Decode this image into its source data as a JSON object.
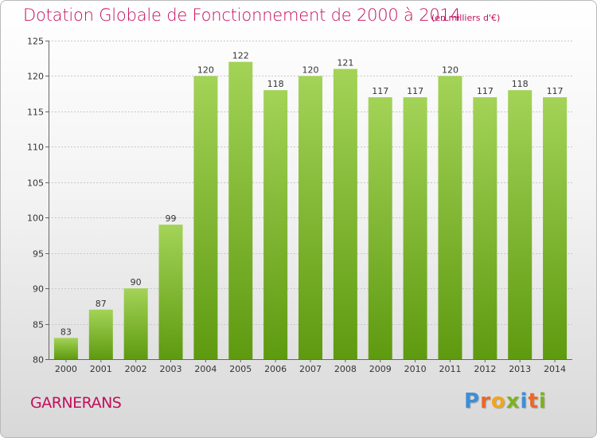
{
  "title": "Dotation Globale de Fonctionnement de 2000 à 2014",
  "unit": "(en milliers d'€)",
  "commune": "GARNERANS",
  "logo": {
    "letters": [
      "P",
      "r",
      "o",
      "x",
      "i",
      "t",
      "i"
    ],
    "colors": [
      "#3b8fd6",
      "#e8692a",
      "#f2a51d",
      "#7bb320",
      "#3b8fd6",
      "#e8692a",
      "#7bb320"
    ]
  },
  "colors": {
    "bar_top": "#a3d357",
    "bar_bottom": "#5e9a10",
    "title": "#c40e5c",
    "grid": "#c8c8c8"
  },
  "chart_data": {
    "type": "bar",
    "categories": [
      "2000",
      "2001",
      "2002",
      "2003",
      "2004",
      "2005",
      "2006",
      "2007",
      "2008",
      "2009",
      "2010",
      "2011",
      "2012",
      "2013",
      "2014"
    ],
    "values": [
      83,
      87,
      90,
      99,
      120,
      122,
      118,
      120,
      121,
      117,
      117,
      120,
      117,
      118,
      117
    ],
    "value_labels": [
      "83",
      "87",
      "90",
      "99",
      "120",
      "122",
      "118",
      "120",
      "121",
      "117",
      "117",
      "120",
      "117",
      "118",
      "117"
    ],
    "title": "Dotation Globale de Fonctionnement de 2000 à 2014",
    "xlabel": "",
    "ylabel": "",
    "ylim": [
      80,
      125
    ],
    "yticks": [
      80,
      85,
      90,
      95,
      100,
      105,
      110,
      115,
      120,
      125
    ],
    "ytick_labels": [
      "80",
      "85",
      "90",
      "95",
      "100",
      "105",
      "110",
      "115",
      "120",
      "125"
    ],
    "grid": true
  }
}
